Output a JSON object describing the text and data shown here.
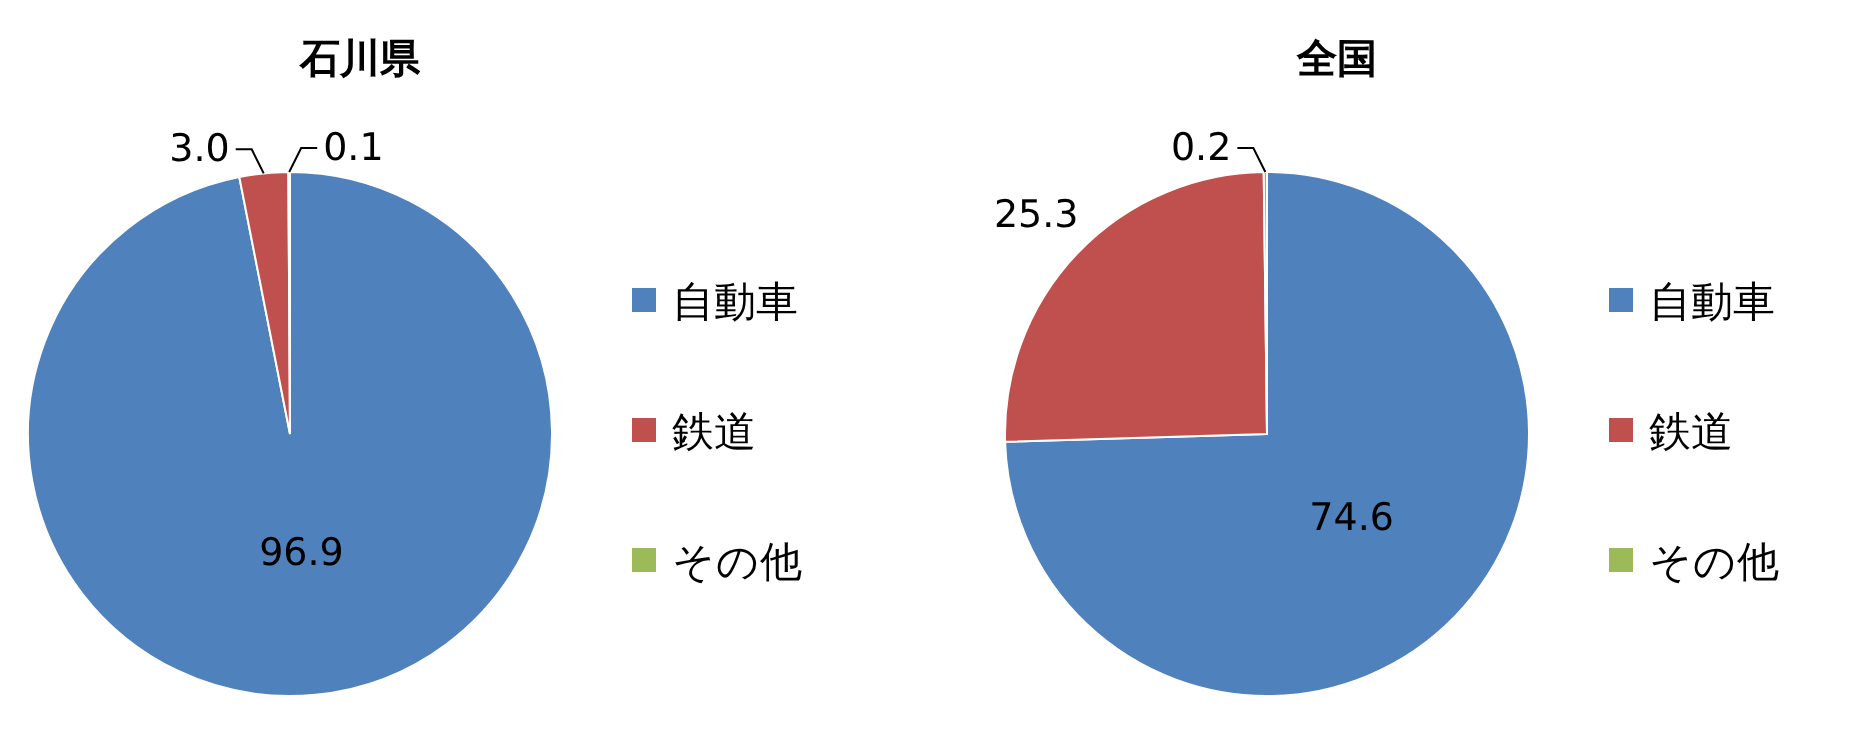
{
  "chart_data": [
    {
      "type": "pie",
      "title": "石川県",
      "categories": [
        "自動車",
        "鉄道",
        "その他"
      ],
      "values": [
        96.9,
        3.0,
        0.1
      ],
      "value_labels": [
        "96.9",
        "3.0",
        "0.1"
      ],
      "colors": [
        "#4f81bd",
        "#c0504d",
        "#9bbb59"
      ],
      "legend": "right"
    },
    {
      "type": "pie",
      "title": "全国",
      "categories": [
        "自動車",
        "鉄道",
        "その他"
      ],
      "values": [
        74.6,
        25.3,
        0.2
      ],
      "value_labels": [
        "74.6",
        "25.3",
        "0.2"
      ],
      "colors": [
        "#4f81bd",
        "#c0504d",
        "#9bbb59"
      ],
      "legend": "right"
    }
  ]
}
